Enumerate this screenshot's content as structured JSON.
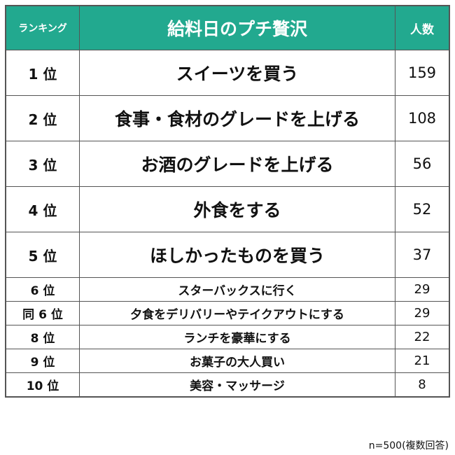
{
  "header": {
    "rank_label": "ランキング",
    "title": "給料日のプチ贅沢",
    "count_label": "人数"
  },
  "rows": [
    {
      "rank": "1 位",
      "item": "スイーツを買う",
      "count": "159"
    },
    {
      "rank": "2 位",
      "item": "食事・食材のグレードを上げる",
      "count": "108"
    },
    {
      "rank": "3 位",
      "item": "お酒のグレードを上げる",
      "count": "56"
    },
    {
      "rank": "4 位",
      "item": "外食をする",
      "count": "52"
    },
    {
      "rank": "5 位",
      "item": "ほしかったものを買う",
      "count": "37"
    },
    {
      "rank": "6 位",
      "item": "スターバックスに行く",
      "count": "29"
    },
    {
      "rank": "同 6 位",
      "item": "夕食をデリバリーやテイクアウトにする",
      "count": "29"
    },
    {
      "rank": "8 位",
      "item": "ランチを豪華にする",
      "count": "22"
    },
    {
      "rank": "9 位",
      "item": "お菓子の大人買い",
      "count": "21"
    },
    {
      "rank": "10 位",
      "item": "美容・マッサージ",
      "count": "8"
    }
  ],
  "footnote": "n=500(複数回答)",
  "colors": {
    "header_bg": "#22a98f",
    "header_text": "#ffffff",
    "border": "#555555"
  }
}
